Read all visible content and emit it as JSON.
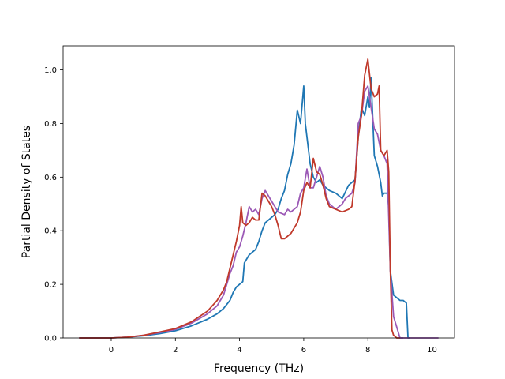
{
  "chart_data": {
    "type": "line",
    "title": "",
    "xlabel": "Frequency (THz)",
    "ylabel": "Partial Density of States",
    "xlim": [
      -1.5,
      10.7
    ],
    "ylim": [
      0.0,
      1.09
    ],
    "xticks": [
      0,
      2,
      4,
      6,
      8,
      10
    ],
    "yticks": [
      0.0,
      0.2,
      0.4,
      0.6,
      0.8,
      1.0
    ],
    "x_tick_labels": [
      "0",
      "2",
      "4",
      "6",
      "8",
      "10"
    ],
    "y_tick_labels": [
      "0.0",
      "0.2",
      "0.4",
      "0.6",
      "0.8",
      "1.0"
    ],
    "grid": false,
    "legend": "none",
    "series": [
      {
        "color": "#1f77b4",
        "points": [
          [
            -1.0,
            0
          ],
          [
            0,
            0
          ],
          [
            0.5,
            0.003
          ],
          [
            1.0,
            0.008
          ],
          [
            1.5,
            0.016
          ],
          [
            2.0,
            0.027
          ],
          [
            2.5,
            0.045
          ],
          [
            3.0,
            0.07
          ],
          [
            3.3,
            0.09
          ],
          [
            3.5,
            0.11
          ],
          [
            3.7,
            0.14
          ],
          [
            3.8,
            0.17
          ],
          [
            3.9,
            0.19
          ],
          [
            4.0,
            0.2
          ],
          [
            4.1,
            0.21
          ],
          [
            4.15,
            0.28
          ],
          [
            4.3,
            0.31
          ],
          [
            4.5,
            0.33
          ],
          [
            4.6,
            0.36
          ],
          [
            4.7,
            0.4
          ],
          [
            4.8,
            0.43
          ],
          [
            4.9,
            0.44
          ],
          [
            5.0,
            0.45
          ],
          [
            5.1,
            0.46
          ],
          [
            5.2,
            0.48
          ],
          [
            5.3,
            0.52
          ],
          [
            5.4,
            0.55
          ],
          [
            5.5,
            0.61
          ],
          [
            5.6,
            0.65
          ],
          [
            5.7,
            0.72
          ],
          [
            5.8,
            0.85
          ],
          [
            5.9,
            0.8
          ],
          [
            6.0,
            0.94
          ],
          [
            6.05,
            0.8
          ],
          [
            6.1,
            0.75
          ],
          [
            6.2,
            0.65
          ],
          [
            6.3,
            0.6
          ],
          [
            6.4,
            0.58
          ],
          [
            6.5,
            0.59
          ],
          [
            6.6,
            0.57
          ],
          [
            6.8,
            0.55
          ],
          [
            7.0,
            0.54
          ],
          [
            7.2,
            0.52
          ],
          [
            7.4,
            0.57
          ],
          [
            7.5,
            0.58
          ],
          [
            7.6,
            0.59
          ],
          [
            7.7,
            0.75
          ],
          [
            7.8,
            0.86
          ],
          [
            7.9,
            0.83
          ],
          [
            8.0,
            0.9
          ],
          [
            8.05,
            0.86
          ],
          [
            8.1,
            0.97
          ],
          [
            8.2,
            0.68
          ],
          [
            8.3,
            0.64
          ],
          [
            8.4,
            0.58
          ],
          [
            8.45,
            0.53
          ],
          [
            8.5,
            0.54
          ],
          [
            8.6,
            0.54
          ],
          [
            8.65,
            0.49
          ],
          [
            8.7,
            0.25
          ],
          [
            8.8,
            0.16
          ],
          [
            9.0,
            0.14
          ],
          [
            9.1,
            0.14
          ],
          [
            9.2,
            0.13
          ],
          [
            9.25,
            0.0
          ],
          [
            9.3,
            0.0
          ]
        ]
      },
      {
        "color": "#9b59b6",
        "points": [
          [
            -1.0,
            0
          ],
          [
            0,
            0
          ],
          [
            0.5,
            0.003
          ],
          [
            1.0,
            0.01
          ],
          [
            1.5,
            0.02
          ],
          [
            2.0,
            0.032
          ],
          [
            2.5,
            0.055
          ],
          [
            3.0,
            0.09
          ],
          [
            3.3,
            0.12
          ],
          [
            3.5,
            0.16
          ],
          [
            3.6,
            0.2
          ],
          [
            3.7,
            0.24
          ],
          [
            3.8,
            0.27
          ],
          [
            3.9,
            0.32
          ],
          [
            4.0,
            0.34
          ],
          [
            4.1,
            0.38
          ],
          [
            4.2,
            0.43
          ],
          [
            4.3,
            0.49
          ],
          [
            4.4,
            0.47
          ],
          [
            4.5,
            0.48
          ],
          [
            4.6,
            0.46
          ],
          [
            4.7,
            0.52
          ],
          [
            4.8,
            0.55
          ],
          [
            4.9,
            0.53
          ],
          [
            5.0,
            0.51
          ],
          [
            5.2,
            0.47
          ],
          [
            5.4,
            0.46
          ],
          [
            5.5,
            0.48
          ],
          [
            5.6,
            0.47
          ],
          [
            5.8,
            0.49
          ],
          [
            5.9,
            0.54
          ],
          [
            6.0,
            0.56
          ],
          [
            6.1,
            0.63
          ],
          [
            6.2,
            0.56
          ],
          [
            6.3,
            0.56
          ],
          [
            6.4,
            0.6
          ],
          [
            6.5,
            0.64
          ],
          [
            6.6,
            0.6
          ],
          [
            6.7,
            0.53
          ],
          [
            6.8,
            0.5
          ],
          [
            7.0,
            0.48
          ],
          [
            7.2,
            0.5
          ],
          [
            7.3,
            0.52
          ],
          [
            7.4,
            0.53
          ],
          [
            7.5,
            0.54
          ],
          [
            7.6,
            0.58
          ],
          [
            7.7,
            0.8
          ],
          [
            7.8,
            0.83
          ],
          [
            7.9,
            0.92
          ],
          [
            8.0,
            0.94
          ],
          [
            8.1,
            0.86
          ],
          [
            8.2,
            0.78
          ],
          [
            8.3,
            0.76
          ],
          [
            8.4,
            0.7
          ],
          [
            8.5,
            0.68
          ],
          [
            8.6,
            0.65
          ],
          [
            8.7,
            0.25
          ],
          [
            8.8,
            0.08
          ],
          [
            8.9,
            0.04
          ],
          [
            9.0,
            0.0
          ],
          [
            9.1,
            0.0
          ]
        ]
      },
      {
        "color": "#c0392b",
        "points": [
          [
            -1.0,
            0
          ],
          [
            0,
            0
          ],
          [
            0.5,
            0.003
          ],
          [
            1.0,
            0.01
          ],
          [
            1.5,
            0.022
          ],
          [
            2.0,
            0.035
          ],
          [
            2.5,
            0.06
          ],
          [
            3.0,
            0.1
          ],
          [
            3.3,
            0.14
          ],
          [
            3.5,
            0.18
          ],
          [
            3.6,
            0.21
          ],
          [
            3.7,
            0.26
          ],
          [
            3.8,
            0.31
          ],
          [
            3.9,
            0.36
          ],
          [
            4.0,
            0.42
          ],
          [
            4.05,
            0.49
          ],
          [
            4.1,
            0.43
          ],
          [
            4.2,
            0.42
          ],
          [
            4.3,
            0.43
          ],
          [
            4.4,
            0.45
          ],
          [
            4.5,
            0.44
          ],
          [
            4.6,
            0.44
          ],
          [
            4.7,
            0.54
          ],
          [
            4.8,
            0.53
          ],
          [
            4.9,
            0.51
          ],
          [
            5.0,
            0.49
          ],
          [
            5.1,
            0.46
          ],
          [
            5.2,
            0.42
          ],
          [
            5.3,
            0.37
          ],
          [
            5.4,
            0.37
          ],
          [
            5.5,
            0.38
          ],
          [
            5.6,
            0.39
          ],
          [
            5.7,
            0.41
          ],
          [
            5.8,
            0.43
          ],
          [
            5.9,
            0.47
          ],
          [
            6.0,
            0.55
          ],
          [
            6.1,
            0.58
          ],
          [
            6.2,
            0.56
          ],
          [
            6.3,
            0.67
          ],
          [
            6.4,
            0.62
          ],
          [
            6.5,
            0.61
          ],
          [
            6.6,
            0.57
          ],
          [
            6.7,
            0.52
          ],
          [
            6.8,
            0.49
          ],
          [
            7.0,
            0.48
          ],
          [
            7.2,
            0.47
          ],
          [
            7.4,
            0.48
          ],
          [
            7.5,
            0.49
          ],
          [
            7.6,
            0.59
          ],
          [
            7.7,
            0.75
          ],
          [
            7.8,
            0.83
          ],
          [
            7.9,
            0.98
          ],
          [
            8.0,
            1.04
          ],
          [
            8.1,
            0.93
          ],
          [
            8.2,
            0.9
          ],
          [
            8.3,
            0.91
          ],
          [
            8.35,
            0.94
          ],
          [
            8.4,
            0.7
          ],
          [
            8.5,
            0.68
          ],
          [
            8.6,
            0.7
          ],
          [
            8.65,
            0.62
          ],
          [
            8.7,
            0.25
          ],
          [
            8.75,
            0.03
          ],
          [
            8.8,
            0.01
          ],
          [
            8.9,
            0.0
          ],
          [
            9.0,
            0.0
          ]
        ]
      },
      {
        "color": "#9b59b6",
        "points": [
          [
            9.0,
            0.0
          ],
          [
            10.2,
            0.0
          ]
        ]
      }
    ]
  }
}
